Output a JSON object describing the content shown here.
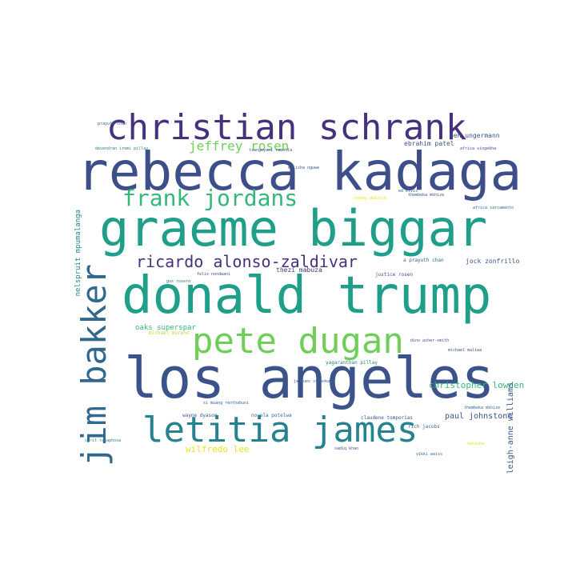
{
  "colors": {
    "background": "#ffffff",
    "dark_purple": "#46317e",
    "indigo": "#3e4e8a",
    "blue": "#3b528b",
    "steel_blue": "#31688e",
    "teal": "#26828e",
    "green_teal": "#1f9e89",
    "green": "#35b779",
    "light_green": "#6ece58",
    "lime": "#b5de2b",
    "yellow": "#e8e419"
  },
  "words": {
    "w01": "christian schrank",
    "w02": "rebecca kadaga",
    "w03": "graeme biggar",
    "w04": "donald trump",
    "w05": "los angeles",
    "w06": "letitia james",
    "w07": "jim bakker",
    "w08": "pete dugan",
    "w09": "frank jordans",
    "w10": "jeffrey rosen",
    "w11": "ricardo alonso-zaldivar",
    "w12": "christopher lowden",
    "w13": "leigh-anne williams",
    "w14": "nelspruit mpumalanga",
    "w15": "paul johnstone",
    "w16": "wilfredo lee",
    "w17": "oaks superspar",
    "w18": "ben ungermann",
    "w19": "ebrahim patel",
    "w20": "jock zonfrillo",
    "w21": "a prayuth chan",
    "w22": "thezi mabuza",
    "w23": "justice rosen",
    "w24": "novela potelwa",
    "w25": "yagaranthan pillay",
    "w26": "wayne dyason",
    "w27": "claudene tomporias",
    "w28": "rich jacobs",
    "w29": "michael moreno",
    "w30": "prayuth chan",
    "w31": "devendran iremi pillay",
    "w32": "cyril ramaphosa",
    "w33": "dino asher-smith",
    "w34": "thembeka mkhize",
    "w35": "africa sarcamento",
    "w36": "jacques steenkamp",
    "w37": "si muang renthabuni",
    "w38": "africa singekha",
    "w39": "ed elvis",
    "w40": "rodney dedrick",
    "w41": "tsangeyani ramohla",
    "w42": "mulisha nguwe",
    "w43": "felix nondwani",
    "w44": "michael maliwa",
    "w45": "gus rosero",
    "w46": "natasha",
    "w47": "thembeka mkhize",
    "w48": "vikki weiss",
    "w49": "sadiq khan"
  }
}
